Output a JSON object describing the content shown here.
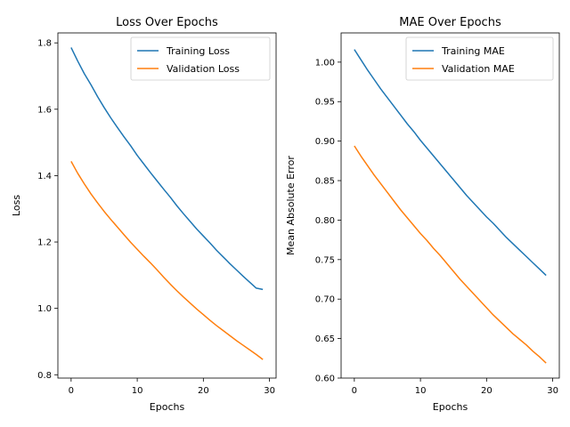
{
  "chart_data": [
    {
      "type": "line",
      "title": "Loss Over Epochs",
      "xlabel": "Epochs",
      "ylabel": "Loss",
      "xlim": [
        -2,
        31
      ],
      "ylim": [
        0.79,
        1.83
      ],
      "xticks": [
        0,
        10,
        20,
        30
      ],
      "yticks": [
        0.8,
        1.0,
        1.2,
        1.4,
        1.6,
        1.8
      ],
      "ytick_labels": [
        "0.8",
        "1.0",
        "1.2",
        "1.4",
        "1.6",
        "1.8"
      ],
      "legend": "top-right",
      "grid": false,
      "x": [
        0,
        1,
        2,
        3,
        4,
        5,
        6,
        7,
        8,
        9,
        10,
        11,
        12,
        13,
        14,
        15,
        16,
        17,
        18,
        19,
        20,
        21,
        22,
        23,
        24,
        25,
        26,
        27,
        28,
        29
      ],
      "series": [
        {
          "name": "Training Loss",
          "color": "#1f77b4",
          "values": [
            1.786,
            1.745,
            1.707,
            1.674,
            1.638,
            1.605,
            1.574,
            1.545,
            1.517,
            1.49,
            1.461,
            1.435,
            1.409,
            1.384,
            1.359,
            1.335,
            1.309,
            1.285,
            1.262,
            1.239,
            1.218,
            1.197,
            1.175,
            1.155,
            1.135,
            1.116,
            1.097,
            1.079,
            1.061,
            1.057
          ]
        },
        {
          "name": "Validation Loss",
          "color": "#ff7f0e",
          "values": [
            1.443,
            1.407,
            1.375,
            1.345,
            1.318,
            1.292,
            1.268,
            1.245,
            1.222,
            1.199,
            1.178,
            1.157,
            1.137,
            1.116,
            1.094,
            1.073,
            1.053,
            1.034,
            1.016,
            0.998,
            0.981,
            0.964,
            0.948,
            0.933,
            0.918,
            0.903,
            0.889,
            0.875,
            0.861,
            0.846
          ]
        }
      ]
    },
    {
      "type": "line",
      "title": "MAE Over Epochs",
      "xlabel": "Epochs",
      "ylabel": "Mean Absolute Error",
      "xlim": [
        -2,
        31
      ],
      "ylim": [
        0.6,
        1.037
      ],
      "xticks": [
        0,
        10,
        20,
        30
      ],
      "yticks": [
        0.6,
        0.65,
        0.7,
        0.75,
        0.8,
        0.85,
        0.9,
        0.95,
        1.0
      ],
      "ytick_labels": [
        "0.60",
        "0.65",
        "0.70",
        "0.75",
        "0.80",
        "0.85",
        "0.90",
        "0.95",
        "1.00"
      ],
      "legend": "top-right",
      "grid": false,
      "x": [
        0,
        1,
        2,
        3,
        4,
        5,
        6,
        7,
        8,
        9,
        10,
        11,
        12,
        13,
        14,
        15,
        16,
        17,
        18,
        19,
        20,
        21,
        22,
        23,
        24,
        25,
        26,
        27,
        28,
        29
      ],
      "series": [
        {
          "name": "Training MAE",
          "color": "#1f77b4",
          "values": [
            1.016,
            1.003,
            0.99,
            0.978,
            0.966,
            0.955,
            0.944,
            0.933,
            0.922,
            0.912,
            0.901,
            0.891,
            0.881,
            0.871,
            0.861,
            0.851,
            0.841,
            0.831,
            0.822,
            0.813,
            0.804,
            0.796,
            0.787,
            0.778,
            0.77,
            0.762,
            0.754,
            0.746,
            0.738,
            0.73
          ]
        },
        {
          "name": "Validation MAE",
          "color": "#ff7f0e",
          "values": [
            0.894,
            0.881,
            0.869,
            0.857,
            0.846,
            0.835,
            0.824,
            0.813,
            0.803,
            0.793,
            0.783,
            0.774,
            0.764,
            0.755,
            0.745,
            0.735,
            0.725,
            0.716,
            0.707,
            0.698,
            0.689,
            0.68,
            0.672,
            0.664,
            0.656,
            0.649,
            0.642,
            0.634,
            0.627,
            0.619
          ]
        }
      ]
    }
  ]
}
